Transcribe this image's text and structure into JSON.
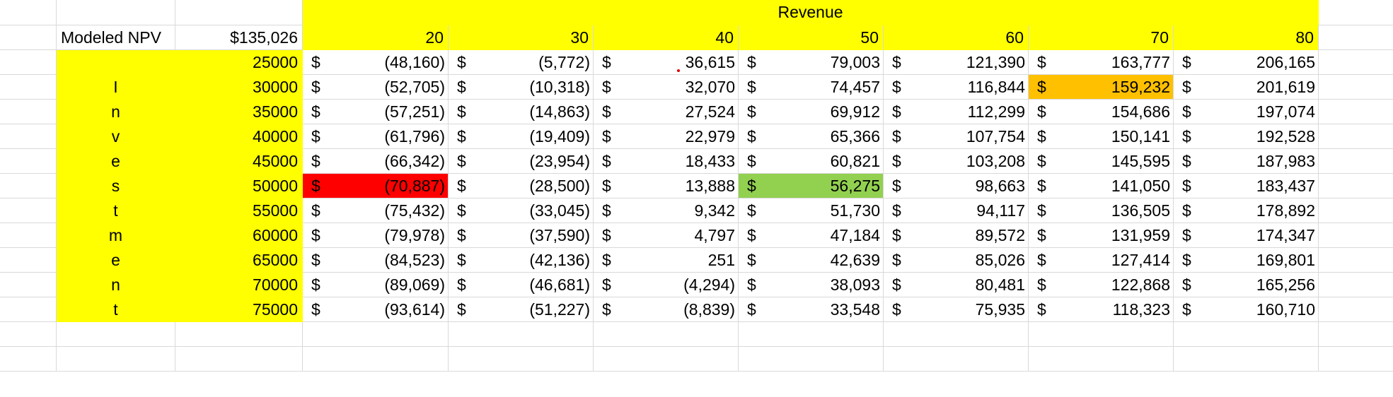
{
  "title_label": "Revenue",
  "npv": {
    "label": "Modeled NPV",
    "value": "$135,026"
  },
  "currency_symbol": "$",
  "revenue_headers": [
    "20",
    "30",
    "40",
    "50",
    "60",
    "70",
    "80"
  ],
  "vertical_label_letters": [
    "I",
    "n",
    "v",
    "e",
    "s",
    "t",
    "m",
    "e",
    "n",
    "t"
  ],
  "rows": [
    {
      "investment": "25000",
      "values": [
        "(48,160)",
        "(5,772)",
        "36,615",
        "79,003",
        "121,390",
        "163,777",
        "206,165"
      ]
    },
    {
      "investment": "30000",
      "values": [
        "(52,705)",
        "(10,318)",
        "32,070",
        "74,457",
        "116,844",
        "159,232",
        "201,619"
      ]
    },
    {
      "investment": "35000",
      "values": [
        "(57,251)",
        "(14,863)",
        "27,524",
        "69,912",
        "112,299",
        "154,686",
        "197,074"
      ]
    },
    {
      "investment": "40000",
      "values": [
        "(61,796)",
        "(19,409)",
        "22,979",
        "65,366",
        "107,754",
        "150,141",
        "192,528"
      ]
    },
    {
      "investment": "45000",
      "values": [
        "(66,342)",
        "(23,954)",
        "18,433",
        "60,821",
        "103,208",
        "145,595",
        "187,983"
      ]
    },
    {
      "investment": "50000",
      "values": [
        "(70,887)",
        "(28,500)",
        "13,888",
        "56,275",
        "98,663",
        "141,050",
        "183,437"
      ]
    },
    {
      "investment": "55000",
      "values": [
        "(75,432)",
        "(33,045)",
        "9,342",
        "51,730",
        "94,117",
        "136,505",
        "178,892"
      ]
    },
    {
      "investment": "60000",
      "values": [
        "(79,978)",
        "(37,590)",
        "4,797",
        "47,184",
        "89,572",
        "131,959",
        "174,347"
      ]
    },
    {
      "investment": "65000",
      "values": [
        "(84,523)",
        "(42,136)",
        "251",
        "42,639",
        "85,026",
        "127,414",
        "169,801"
      ]
    },
    {
      "investment": "70000",
      "values": [
        "(89,069)",
        "(46,681)",
        "(4,294)",
        "38,093",
        "80,481",
        "122,868",
        "165,256"
      ]
    },
    {
      "investment": "75000",
      "values": [
        "(93,614)",
        "(51,227)",
        "(8,839)",
        "33,548",
        "75,935",
        "118,323",
        "160,710"
      ]
    }
  ],
  "highlights": {
    "red": {
      "row": 5,
      "col": 0,
      "color": "#ff0000"
    },
    "green": {
      "row": 5,
      "col": 3,
      "color": "#92d050"
    },
    "orange": {
      "row": 1,
      "col": 5,
      "color": "#ffc000"
    },
    "yellow": "#ffff00"
  }
}
